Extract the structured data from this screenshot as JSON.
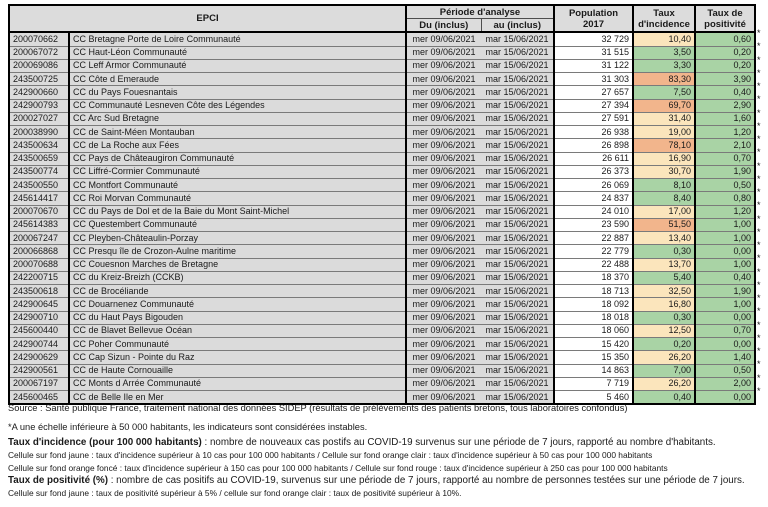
{
  "colors": {
    "green": "#a9d3a5",
    "yellow": "#fbe5bc",
    "orange": "#f2b58c",
    "header_bg": "#dcdcdc",
    "cell_gray": "#dbdbdb"
  },
  "table": {
    "header": {
      "epci": "EPCI",
      "periode": "Période d'analyse",
      "du": "Du (inclus)",
      "au": "au (inclus)",
      "population_l1": "Population",
      "population_l2": "2017",
      "incidence_l1": "Taux",
      "incidence_l2": "d'incidence",
      "positivite_l1": "Taux de",
      "positivite_l2": "positivité"
    },
    "rows": [
      {
        "code": "200070662",
        "name": "CC Bretagne Porte de Loire Communauté",
        "du": "mer 09/06/2021",
        "au": "mar 15/06/2021",
        "pop": "32 729",
        "incidence": "10,40",
        "incidence_level": "yellow",
        "positivity": "0,60",
        "positivity_level": "green",
        "note": "*"
      },
      {
        "code": "200067072",
        "name": "CC Haut-Léon Communauté",
        "du": "mer 09/06/2021",
        "au": "mar 15/06/2021",
        "pop": "31 515",
        "incidence": "3,50",
        "incidence_level": "green",
        "positivity": "0,20",
        "positivity_level": "green",
        "note": "*"
      },
      {
        "code": "200069086",
        "name": "CC Leff Armor Communauté",
        "du": "mer 09/06/2021",
        "au": "mar 15/06/2021",
        "pop": "31 122",
        "incidence": "3,30",
        "incidence_level": "green",
        "positivity": "0,20",
        "positivity_level": "green",
        "note": "*"
      },
      {
        "code": "243500725",
        "name": "CC Côte d Emeraude",
        "du": "mer 09/06/2021",
        "au": "mar 15/06/2021",
        "pop": "31 303",
        "incidence": "83,30",
        "incidence_level": "orange",
        "positivity": "3,90",
        "positivity_level": "green",
        "note": "*"
      },
      {
        "code": "242900660",
        "name": "CC du Pays Fouesnantais",
        "du": "mer 09/06/2021",
        "au": "mar 15/06/2021",
        "pop": "27 657",
        "incidence": "7,50",
        "incidence_level": "green",
        "positivity": "0,40",
        "positivity_level": "green",
        "note": "*"
      },
      {
        "code": "242900793",
        "name": "CC Communauté Lesneven Côte des Légendes",
        "du": "mer 09/06/2021",
        "au": "mar 15/06/2021",
        "pop": "27 394",
        "incidence": "69,70",
        "incidence_level": "orange",
        "positivity": "2,90",
        "positivity_level": "green",
        "note": "*"
      },
      {
        "code": "200027027",
        "name": "CC Arc Sud Bretagne",
        "du": "mer 09/06/2021",
        "au": "mar 15/06/2021",
        "pop": "27 591",
        "incidence": "31,40",
        "incidence_level": "yellow",
        "positivity": "1,60",
        "positivity_level": "green",
        "note": "*"
      },
      {
        "code": "200038990",
        "name": "CC de Saint-Méen Montauban",
        "du": "mer 09/06/2021",
        "au": "mar 15/06/2021",
        "pop": "26 938",
        "incidence": "19,00",
        "incidence_level": "yellow",
        "positivity": "1,20",
        "positivity_level": "green",
        "note": "*"
      },
      {
        "code": "243500634",
        "name": "CC de La Roche aux Fées",
        "du": "mer 09/06/2021",
        "au": "mar 15/06/2021",
        "pop": "26 898",
        "incidence": "78,10",
        "incidence_level": "orange",
        "positivity": "2,10",
        "positivity_level": "green",
        "note": "*"
      },
      {
        "code": "243500659",
        "name": "CC Pays de Châteaugiron Communauté",
        "du": "mer 09/06/2021",
        "au": "mar 15/06/2021",
        "pop": "26 611",
        "incidence": "16,90",
        "incidence_level": "yellow",
        "positivity": "0,70",
        "positivity_level": "green",
        "note": "*"
      },
      {
        "code": "243500774",
        "name": "CC Liffré-Cormier Communauté",
        "du": "mer 09/06/2021",
        "au": "mar 15/06/2021",
        "pop": "26 373",
        "incidence": "30,70",
        "incidence_level": "yellow",
        "positivity": "1,90",
        "positivity_level": "green",
        "note": "*"
      },
      {
        "code": "243500550",
        "name": "CC Montfort Communauté",
        "du": "mer 09/06/2021",
        "au": "mar 15/06/2021",
        "pop": "26 069",
        "incidence": "8,10",
        "incidence_level": "green",
        "positivity": "0,50",
        "positivity_level": "green",
        "note": "*"
      },
      {
        "code": "245614417",
        "name": "CC Roi Morvan Communauté",
        "du": "mer 09/06/2021",
        "au": "mar 15/06/2021",
        "pop": "24 837",
        "incidence": "8,40",
        "incidence_level": "green",
        "positivity": "0,80",
        "positivity_level": "green",
        "note": "*"
      },
      {
        "code": "200070670",
        "name": "CC du Pays de Dol et de la Baie du Mont Saint-Michel",
        "du": "mer 09/06/2021",
        "au": "mar 15/06/2021",
        "pop": "24 010",
        "incidence": "17,00",
        "incidence_level": "yellow",
        "positivity": "1,20",
        "positivity_level": "green",
        "note": "*"
      },
      {
        "code": "245614383",
        "name": "CC Questembert Communauté",
        "du": "mer 09/06/2021",
        "au": "mar 15/06/2021",
        "pop": "23 590",
        "incidence": "51,50",
        "incidence_level": "orange",
        "positivity": "1,00",
        "positivity_level": "green",
        "note": "*"
      },
      {
        "code": "200067247",
        "name": "CC Pleyben-Châteaulin-Porzay",
        "du": "mer 09/06/2021",
        "au": "mar 15/06/2021",
        "pop": "22 887",
        "incidence": "13,40",
        "incidence_level": "yellow",
        "positivity": "1,00",
        "positivity_level": "green",
        "note": "*"
      },
      {
        "code": "200066868",
        "name": "CC Presqu île de Crozon-Aulne maritime",
        "du": "mer 09/06/2021",
        "au": "mar 15/06/2021",
        "pop": "22 779",
        "incidence": "0,30",
        "incidence_level": "green",
        "positivity": "0,00",
        "positivity_level": "green",
        "note": "*"
      },
      {
        "code": "200070688",
        "name": "CC Couesnon Marches de Bretagne",
        "du": "mer 09/06/2021",
        "au": "mar 15/06/2021",
        "pop": "22 488",
        "incidence": "13,70",
        "incidence_level": "yellow",
        "positivity": "1,00",
        "positivity_level": "green",
        "note": "*"
      },
      {
        "code": "242200715",
        "name": "CC du Kreiz-Breizh (CCKB)",
        "du": "mer 09/06/2021",
        "au": "mar 15/06/2021",
        "pop": "18 370",
        "incidence": "5,40",
        "incidence_level": "green",
        "positivity": "0,40",
        "positivity_level": "green",
        "note": "*"
      },
      {
        "code": "243500618",
        "name": "CC de Brocéliande",
        "du": "mer 09/06/2021",
        "au": "mar 15/06/2021",
        "pop": "18 713",
        "incidence": "32,50",
        "incidence_level": "yellow",
        "positivity": "1,90",
        "positivity_level": "green",
        "note": "*"
      },
      {
        "code": "242900645",
        "name": "CC Douarnenez Communauté",
        "du": "mer 09/06/2021",
        "au": "mar 15/06/2021",
        "pop": "18 092",
        "incidence": "16,80",
        "incidence_level": "yellow",
        "positivity": "1,00",
        "positivity_level": "green",
        "note": "*"
      },
      {
        "code": "242900710",
        "name": "CC du Haut Pays Bigouden",
        "du": "mer 09/06/2021",
        "au": "mar 15/06/2021",
        "pop": "18 018",
        "incidence": "0,30",
        "incidence_level": "green",
        "positivity": "0,00",
        "positivity_level": "green",
        "note": "*"
      },
      {
        "code": "245600440",
        "name": "CC de Blavet Bellevue Océan",
        "du": "mer 09/06/2021",
        "au": "mar 15/06/2021",
        "pop": "18 060",
        "incidence": "12,50",
        "incidence_level": "yellow",
        "positivity": "0,70",
        "positivity_level": "green",
        "note": "*"
      },
      {
        "code": "242900744",
        "name": "CC Poher Communauté",
        "du": "mer 09/06/2021",
        "au": "mar 15/06/2021",
        "pop": "15 420",
        "incidence": "0,20",
        "incidence_level": "green",
        "positivity": "0,00",
        "positivity_level": "green",
        "note": "*"
      },
      {
        "code": "242900629",
        "name": "CC Cap Sizun - Pointe du Raz",
        "du": "mer 09/06/2021",
        "au": "mar 15/06/2021",
        "pop": "15 350",
        "incidence": "26,20",
        "incidence_level": "yellow",
        "positivity": "1,40",
        "positivity_level": "green",
        "note": "*"
      },
      {
        "code": "242900561",
        "name": "CC de Haute Cornouaille",
        "du": "mer 09/06/2021",
        "au": "mar 15/06/2021",
        "pop": "14 863",
        "incidence": "7,00",
        "incidence_level": "green",
        "positivity": "0,50",
        "positivity_level": "green",
        "note": "*"
      },
      {
        "code": "200067197",
        "name": "CC Monts d Arrée Communauté",
        "du": "mer 09/06/2021",
        "au": "mar 15/06/2021",
        "pop": "7 719",
        "incidence": "26,20",
        "incidence_level": "yellow",
        "positivity": "2,00",
        "positivity_level": "green",
        "note": "*"
      },
      {
        "code": "245600465",
        "name": "CC de Belle Ile en Mer",
        "du": "mer 09/06/2021",
        "au": "mar 15/06/2021",
        "pop": "5 460",
        "incidence": "0,40",
        "incidence_level": "green",
        "positivity": "0,00",
        "positivity_level": "green",
        "note": "*"
      }
    ]
  },
  "footer": {
    "source": "Source  : Santé publique France, traitement national des données SIDEP (résultats de prélèvements des patients bretons, tous laboratoires confondus)",
    "note_scale": "*A une échelle inférieure à 50 000 habitants, les indicateurs sont considérées instables.",
    "incidence_title": "Taux d'incidence (pour 100 000 habitants)",
    "incidence_def": " : nombre de nouveaux cas postifs au COVID-19 survenus sur une période de 7 jours, rapporté au nombre d'habitants.",
    "incidence_rule1": "Cellule sur fond jaune :  taux d'incidence supérieur à 10 cas pour 100 000 habitants / Cellule sur fond orange clair : taux d'incidence supérieur à 50 cas pour 100 000 habitants",
    "incidence_rule2": "Cellule sur fond orange foncé : taux d'incidence supérieur à 150 cas pour 100 000 habitants / Cellule sur fond rouge : taux d'incidence supérieur à 250 cas pour 100 000 habitants",
    "positivity_title": "Taux de positivité (%)",
    "positivity_def": " : nombre de cas positifs au COVID-19, survenus sur une période de 7 jours, rapporté au nombre de personnes testées sur une période de 7 jours.",
    "positivity_rule": "Cellule sur fond jaune :  taux de positivité supérieur à 5% / cellule sur fond orange clair : taux de positivité supérieur à 10%."
  }
}
